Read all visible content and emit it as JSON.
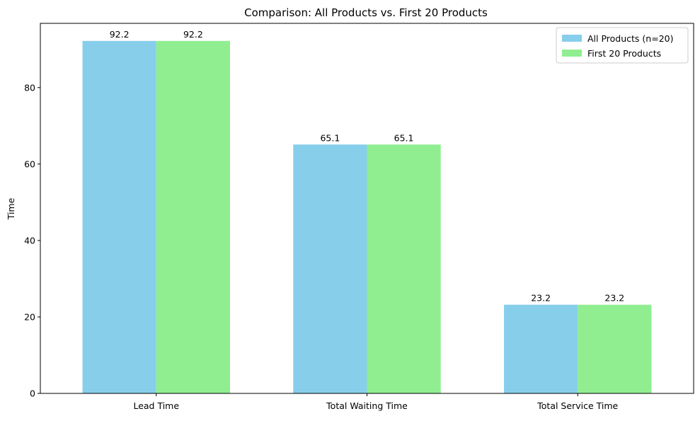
{
  "chart_data": {
    "type": "bar",
    "title": "Comparison: All Products vs. First 20 Products",
    "xlabel": "",
    "ylabel": "Time",
    "categories": [
      "Lead Time",
      "Total Waiting Time",
      "Total Service Time"
    ],
    "series": [
      {
        "name": "All Products (n=20)",
        "values": [
          92.2,
          65.1,
          23.2
        ],
        "color": "#87ceeb"
      },
      {
        "name": "First 20 Products",
        "values": [
          92.2,
          65.1,
          23.2
        ],
        "color": "#90ee90"
      }
    ],
    "data_labels": [
      [
        "92.2",
        "65.1",
        "23.2"
      ],
      [
        "92.2",
        "65.1",
        "23.2"
      ]
    ],
    "ylim": [
      0,
      96.8
    ],
    "yticks": [
      0,
      20,
      40,
      60,
      80
    ],
    "ytick_labels": [
      "0",
      "20",
      "40",
      "60",
      "80"
    ],
    "grid": false,
    "legend_position": "top-right"
  }
}
